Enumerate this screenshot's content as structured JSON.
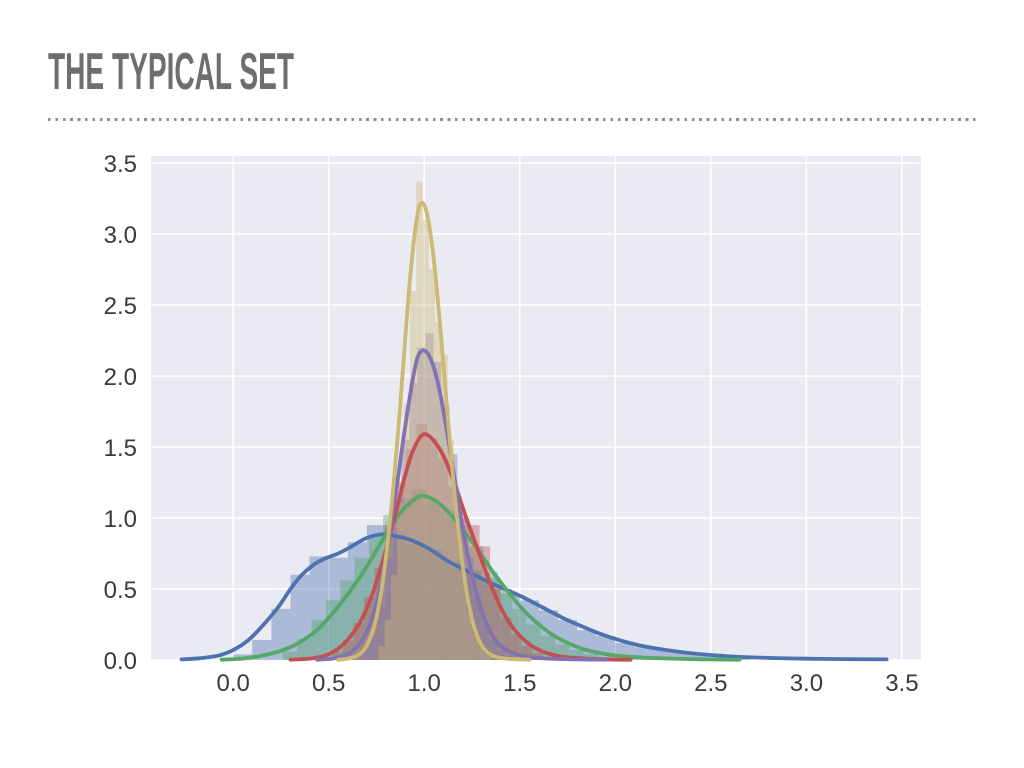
{
  "slide": {
    "title": "THE TYPICAL SET",
    "title_color": "#6e6e6e",
    "divider_color": "#8f8f8f"
  },
  "chart_data": {
    "type": "line",
    "subtype": "overlaid histograms with KDE curves (seaborn distplot style)",
    "title": "",
    "xlabel": "",
    "ylabel": "",
    "xlim": [
      -0.43,
      3.6
    ],
    "ylim": [
      0,
      3.55
    ],
    "xticks": [
      0.0,
      0.5,
      1.0,
      1.5,
      2.0,
      2.5,
      3.0,
      3.5
    ],
    "xtick_labels": [
      "0.0",
      "0.5",
      "1.0",
      "1.5",
      "2.0",
      "2.5",
      "3.0",
      "3.5"
    ],
    "yticks": [
      0.0,
      0.5,
      1.0,
      1.5,
      2.0,
      2.5,
      3.0,
      3.5
    ],
    "ytick_labels": [
      "0.0",
      "0.5",
      "1.0",
      "1.5",
      "2.0",
      "2.5",
      "3.0",
      "3.5"
    ],
    "grid": true,
    "legend": false,
    "plot_bg": "#eaeaf2",
    "grid_color": "#ffffff",
    "tick_color": "#3a3a3a",
    "tick_font_size": 24,
    "hist_opacity": 0.4,
    "line_width": 3.8,
    "series": [
      {
        "name": "blue-widest",
        "color": "#4c72b0",
        "kde": [
          [
            -0.27,
            0.004
          ],
          [
            -0.18,
            0.012
          ],
          [
            -0.08,
            0.03
          ],
          [
            0.0,
            0.07
          ],
          [
            0.08,
            0.14
          ],
          [
            0.16,
            0.25
          ],
          [
            0.24,
            0.38
          ],
          [
            0.3,
            0.5
          ],
          [
            0.36,
            0.6
          ],
          [
            0.42,
            0.67
          ],
          [
            0.48,
            0.715
          ],
          [
            0.55,
            0.75
          ],
          [
            0.62,
            0.8
          ],
          [
            0.7,
            0.86
          ],
          [
            0.78,
            0.885
          ],
          [
            0.86,
            0.87
          ],
          [
            0.94,
            0.84
          ],
          [
            1.03,
            0.78
          ],
          [
            1.12,
            0.7
          ],
          [
            1.22,
            0.63
          ],
          [
            1.32,
            0.56
          ],
          [
            1.42,
            0.5
          ],
          [
            1.52,
            0.44
          ],
          [
            1.62,
            0.37
          ],
          [
            1.72,
            0.3
          ],
          [
            1.82,
            0.24
          ],
          [
            1.92,
            0.185
          ],
          [
            2.02,
            0.14
          ],
          [
            2.12,
            0.105
          ],
          [
            2.22,
            0.08
          ],
          [
            2.35,
            0.055
          ],
          [
            2.5,
            0.035
          ],
          [
            2.65,
            0.022
          ],
          [
            2.8,
            0.015
          ],
          [
            3.0,
            0.009
          ],
          [
            3.2,
            0.006
          ],
          [
            3.42,
            0.004
          ]
        ],
        "hist": {
          "width": 0.1,
          "bars": [
            [
              0.0,
              0.04
            ],
            [
              0.1,
              0.14
            ],
            [
              0.2,
              0.36
            ],
            [
              0.3,
              0.6
            ],
            [
              0.4,
              0.73
            ],
            [
              0.5,
              0.72
            ],
            [
              0.6,
              0.83
            ],
            [
              0.7,
              0.95
            ],
            [
              0.8,
              0.88
            ],
            [
              0.9,
              0.82
            ],
            [
              1.0,
              0.78
            ],
            [
              1.1,
              0.7
            ],
            [
              1.2,
              0.63
            ],
            [
              1.3,
              0.58
            ],
            [
              1.4,
              0.47
            ],
            [
              1.5,
              0.42
            ],
            [
              1.6,
              0.35
            ],
            [
              1.7,
              0.28
            ],
            [
              1.8,
              0.21
            ],
            [
              1.9,
              0.17
            ],
            [
              2.0,
              0.12
            ],
            [
              2.1,
              0.09
            ],
            [
              2.2,
              0.07
            ],
            [
              2.3,
              0.05
            ],
            [
              2.4,
              0.03
            ],
            [
              2.5,
              0.02
            ],
            [
              2.6,
              0.012
            ],
            [
              2.8,
              0.008
            ],
            [
              3.1,
              0.006
            ],
            [
              3.3,
              0.004
            ]
          ]
        }
      },
      {
        "name": "green",
        "color": "#55a868",
        "kde": [
          [
            -0.06,
            0.002
          ],
          [
            0.05,
            0.01
          ],
          [
            0.15,
            0.03
          ],
          [
            0.25,
            0.065
          ],
          [
            0.35,
            0.125
          ],
          [
            0.45,
            0.225
          ],
          [
            0.54,
            0.36
          ],
          [
            0.62,
            0.5
          ],
          [
            0.7,
            0.66
          ],
          [
            0.78,
            0.84
          ],
          [
            0.86,
            1.01
          ],
          [
            0.92,
            1.1
          ],
          [
            0.98,
            1.155
          ],
          [
            1.05,
            1.13
          ],
          [
            1.12,
            1.05
          ],
          [
            1.2,
            0.92
          ],
          [
            1.28,
            0.78
          ],
          [
            1.36,
            0.62
          ],
          [
            1.44,
            0.48
          ],
          [
            1.52,
            0.35
          ],
          [
            1.6,
            0.25
          ],
          [
            1.68,
            0.17
          ],
          [
            1.76,
            0.115
          ],
          [
            1.85,
            0.07
          ],
          [
            1.95,
            0.042
          ],
          [
            2.08,
            0.022
          ],
          [
            2.25,
            0.011
          ],
          [
            2.45,
            0.005
          ],
          [
            2.65,
            0.002
          ]
        ],
        "hist": {
          "width": 0.075,
          "bars": [
            [
              0.26,
              0.06
            ],
            [
              0.335,
              0.15
            ],
            [
              0.41,
              0.28
            ],
            [
              0.485,
              0.42
            ],
            [
              0.56,
              0.56
            ],
            [
              0.635,
              0.72
            ],
            [
              0.71,
              0.88
            ],
            [
              0.785,
              1.02
            ],
            [
              0.86,
              1.14
            ],
            [
              0.935,
              1.2
            ],
            [
              1.01,
              1.12
            ],
            [
              1.085,
              1.05
            ],
            [
              1.16,
              0.95
            ],
            [
              1.235,
              0.8
            ],
            [
              1.31,
              0.62
            ],
            [
              1.385,
              0.5
            ],
            [
              1.46,
              0.36
            ],
            [
              1.535,
              0.25
            ],
            [
              1.61,
              0.17
            ],
            [
              1.685,
              0.11
            ],
            [
              1.76,
              0.07
            ],
            [
              1.835,
              0.04
            ],
            [
              1.91,
              0.022
            ]
          ]
        }
      },
      {
        "name": "red",
        "color": "#c44e52",
        "kde": [
          [
            0.3,
            0.002
          ],
          [
            0.4,
            0.01
          ],
          [
            0.48,
            0.03
          ],
          [
            0.55,
            0.08
          ],
          [
            0.61,
            0.16
          ],
          [
            0.67,
            0.28
          ],
          [
            0.73,
            0.47
          ],
          [
            0.79,
            0.73
          ],
          [
            0.85,
            1.03
          ],
          [
            0.9,
            1.3
          ],
          [
            0.94,
            1.47
          ],
          [
            0.99,
            1.585
          ],
          [
            1.04,
            1.56
          ],
          [
            1.1,
            1.44
          ],
          [
            1.16,
            1.24
          ],
          [
            1.22,
            1.0
          ],
          [
            1.28,
            0.78
          ],
          [
            1.34,
            0.56
          ],
          [
            1.4,
            0.37
          ],
          [
            1.46,
            0.235
          ],
          [
            1.52,
            0.145
          ],
          [
            1.58,
            0.085
          ],
          [
            1.65,
            0.045
          ],
          [
            1.73,
            0.022
          ],
          [
            1.85,
            0.009
          ],
          [
            2.0,
            0.003
          ],
          [
            2.08,
            0.002
          ]
        ],
        "hist": {
          "width": 0.055,
          "bars": [
            [
              0.52,
              0.06
            ],
            [
              0.575,
              0.14
            ],
            [
              0.63,
              0.26
            ],
            [
              0.685,
              0.44
            ],
            [
              0.74,
              0.65
            ],
            [
              0.795,
              0.95
            ],
            [
              0.85,
              1.25
            ],
            [
              0.905,
              1.48
            ],
            [
              0.96,
              1.66
            ],
            [
              1.015,
              1.56
            ],
            [
              1.07,
              1.42
            ],
            [
              1.125,
              1.22
            ],
            [
              1.18,
              1.0
            ],
            [
              1.235,
              0.95
            ],
            [
              1.29,
              0.8
            ],
            [
              1.345,
              0.5
            ],
            [
              1.4,
              0.3
            ],
            [
              1.455,
              0.18
            ],
            [
              1.51,
              0.1
            ],
            [
              1.565,
              0.05
            ],
            [
              1.62,
              0.025
            ]
          ]
        }
      },
      {
        "name": "purple",
        "color": "#8172b2",
        "kde": [
          [
            0.44,
            0.002
          ],
          [
            0.52,
            0.01
          ],
          [
            0.58,
            0.03
          ],
          [
            0.64,
            0.08
          ],
          [
            0.7,
            0.2
          ],
          [
            0.75,
            0.4
          ],
          [
            0.8,
            0.73
          ],
          [
            0.85,
            1.16
          ],
          [
            0.89,
            1.55
          ],
          [
            0.93,
            1.9
          ],
          [
            0.965,
            2.13
          ],
          [
            1.0,
            2.18
          ],
          [
            1.04,
            2.1
          ],
          [
            1.08,
            1.9
          ],
          [
            1.12,
            1.6
          ],
          [
            1.16,
            1.27
          ],
          [
            1.2,
            0.94
          ],
          [
            1.25,
            0.6
          ],
          [
            1.3,
            0.35
          ],
          [
            1.35,
            0.19
          ],
          [
            1.4,
            0.1
          ],
          [
            1.46,
            0.05
          ],
          [
            1.54,
            0.022
          ],
          [
            1.65,
            0.01
          ],
          [
            1.8,
            0.004
          ],
          [
            1.95,
            0.002
          ]
        ],
        "hist": {
          "width": 0.042,
          "bars": [
            [
              0.67,
              0.08
            ],
            [
              0.712,
              0.18
            ],
            [
              0.754,
              0.38
            ],
            [
              0.796,
              0.72
            ],
            [
              0.838,
              1.1
            ],
            [
              0.88,
              1.55
            ],
            [
              0.922,
              1.95
            ],
            [
              0.964,
              2.2
            ],
            [
              1.006,
              2.3
            ],
            [
              1.048,
              2.1
            ],
            [
              1.09,
              1.8
            ],
            [
              1.132,
              1.45
            ],
            [
              1.174,
              1.05
            ],
            [
              1.216,
              0.72
            ],
            [
              1.258,
              0.45
            ],
            [
              1.3,
              0.26
            ],
            [
              1.342,
              0.14
            ],
            [
              1.384,
              0.07
            ],
            [
              1.426,
              0.03
            ]
          ]
        }
      },
      {
        "name": "khaki-narrowest",
        "color": "#ccb974",
        "kde": [
          [
            0.55,
            0.002
          ],
          [
            0.62,
            0.015
          ],
          [
            0.67,
            0.05
          ],
          [
            0.71,
            0.13
          ],
          [
            0.75,
            0.3
          ],
          [
            0.79,
            0.62
          ],
          [
            0.83,
            1.1
          ],
          [
            0.87,
            1.72
          ],
          [
            0.9,
            2.25
          ],
          [
            0.93,
            2.75
          ],
          [
            0.96,
            3.1
          ],
          [
            0.985,
            3.22
          ],
          [
            1.015,
            3.14
          ],
          [
            1.05,
            2.82
          ],
          [
            1.09,
            2.25
          ],
          [
            1.13,
            1.6
          ],
          [
            1.17,
            1.02
          ],
          [
            1.21,
            0.58
          ],
          [
            1.25,
            0.29
          ],
          [
            1.29,
            0.13
          ],
          [
            1.33,
            0.055
          ],
          [
            1.38,
            0.02
          ],
          [
            1.45,
            0.007
          ],
          [
            1.55,
            0.002
          ]
        ],
        "hist": {
          "width": 0.033,
          "bars": [
            [
              0.76,
              0.1
            ],
            [
              0.793,
              0.28
            ],
            [
              0.826,
              0.6
            ],
            [
              0.859,
              1.1
            ],
            [
              0.892,
              1.8
            ],
            [
              0.925,
              2.6
            ],
            [
              0.958,
              3.37
            ],
            [
              0.991,
              3.1
            ],
            [
              1.024,
              2.75
            ],
            [
              1.057,
              2.38
            ],
            [
              1.09,
              2.15
            ],
            [
              1.123,
              1.55
            ],
            [
              1.156,
              1.0
            ],
            [
              1.189,
              0.62
            ],
            [
              1.222,
              0.35
            ],
            [
              1.255,
              0.18
            ],
            [
              1.288,
              0.09
            ],
            [
              1.321,
              0.04
            ]
          ]
        }
      }
    ]
  }
}
